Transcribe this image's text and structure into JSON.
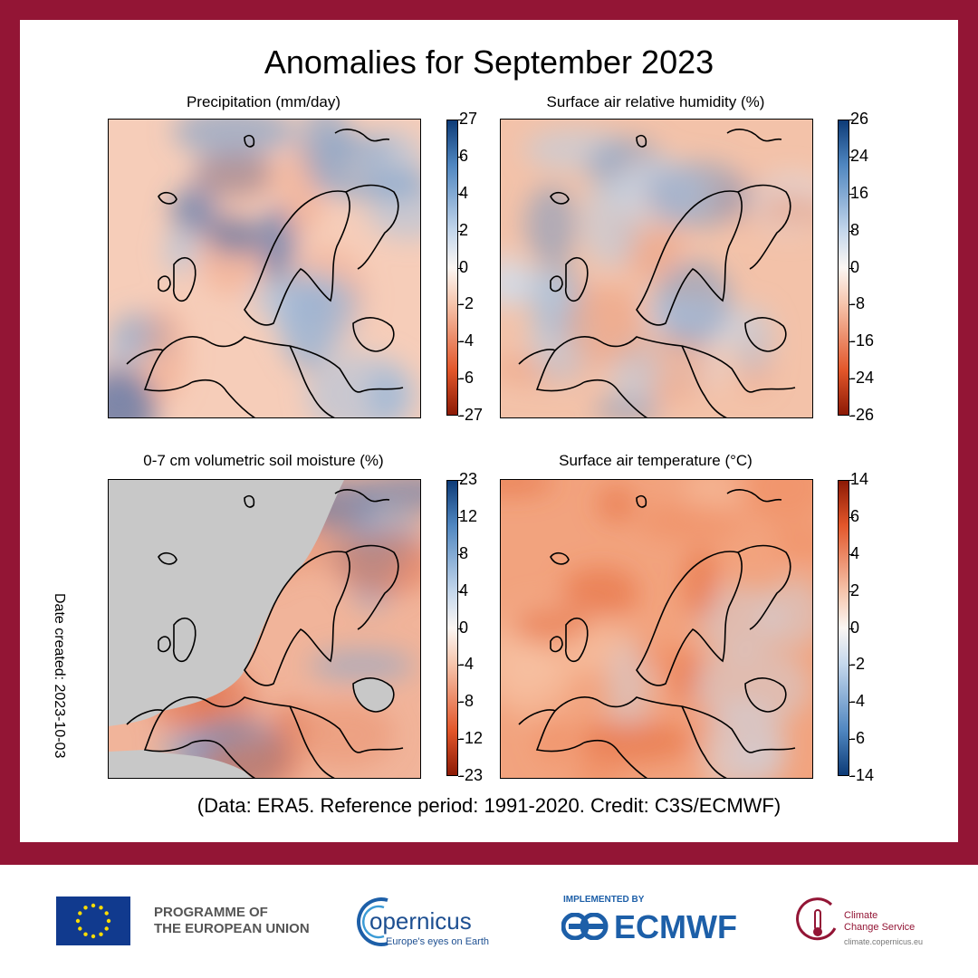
{
  "title": "Anomalies for September 2023",
  "credit": "(Data: ERA5. Reference period: 1991-2020. Credit: C3S/ECMWF)",
  "date_created": "Date created: 2023-10-03",
  "colors": {
    "frame": "#931535",
    "positive_warm": "#d9481d",
    "positive_cool": "#1f5c9c",
    "neutral": "#f7f2ee",
    "land_mask": "#c8c8c8"
  },
  "chart_data": [
    {
      "type": "heatmap",
      "title": "Precipitation (mm/day)",
      "colorbar_ticks": [
        "27",
        "6",
        "4",
        "2",
        "0",
        "-2",
        "-4",
        "-6",
        "-27"
      ],
      "colormap": "red-white-blue",
      "top_color": "blue",
      "bottom_color": "red"
    },
    {
      "type": "heatmap",
      "title": "Surface air relative humidity (%)",
      "colorbar_ticks": [
        "26",
        "24",
        "16",
        "8",
        "0",
        "-8",
        "-16",
        "-24",
        "-26"
      ],
      "colormap": "red-white-blue",
      "top_color": "blue",
      "bottom_color": "red"
    },
    {
      "type": "heatmap",
      "title": "0-7 cm volumetric soil moisture (%)",
      "colorbar_ticks": [
        "23",
        "12",
        "8",
        "4",
        "0",
        "-4",
        "-8",
        "-12",
        "-23"
      ],
      "colormap": "red-white-blue",
      "top_color": "blue",
      "bottom_color": "red"
    },
    {
      "type": "heatmap",
      "title": "Surface air temperature (°C)",
      "colorbar_ticks": [
        "14",
        "6",
        "4",
        "2",
        "0",
        "-2",
        "-4",
        "-6",
        "-14"
      ],
      "colormap": "blue-white-red",
      "top_color": "red",
      "bottom_color": "blue"
    }
  ],
  "footer": {
    "eu_line1": "PROGRAMME OF",
    "eu_line2": "THE EUROPEAN UNION",
    "copernicus_name": "opernicus",
    "copernicus_tagline": "Europe's eyes on Earth",
    "implemented_by": "IMPLEMENTED BY",
    "ecmwf": "ECMWF",
    "c3s_line1": "Climate",
    "c3s_line2": "Change Service",
    "c3s_url": "climate.copernicus.eu"
  }
}
